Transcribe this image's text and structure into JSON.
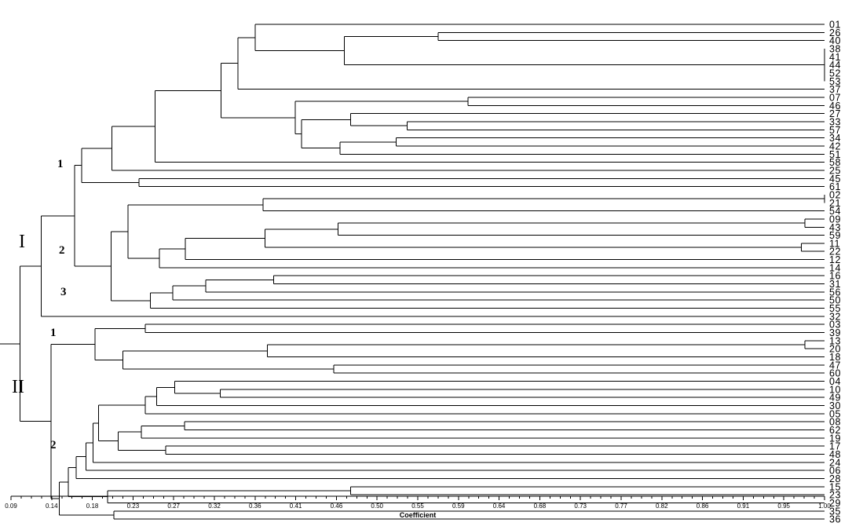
{
  "chart_data": {
    "type": "dendrogram",
    "xlabel": "Coefficient",
    "xlim": [
      0.09,
      1.0
    ],
    "x_tick_labels": [
      "0.09",
      "0.14",
      "0.18",
      "0.23",
      "0.27",
      "0.32",
      "0.36",
      "0.41",
      "0.46",
      "0.50",
      "0.55",
      "0.59",
      "0.64",
      "0.68",
      "0.73",
      "0.77",
      "0.82",
      "0.86",
      "0.91",
      "0.95",
      "1.00"
    ],
    "leaves": [
      "01",
      "26",
      "40",
      "38",
      "41",
      "44",
      "52",
      "53",
      "37",
      "07",
      "46",
      "27",
      "33",
      "57",
      "34",
      "42",
      "51",
      "58",
      "25",
      "45",
      "61",
      "02",
      "21",
      "54",
      "09",
      "43",
      "59",
      "11",
      "22",
      "12",
      "14",
      "16",
      "31",
      "56",
      "50",
      "55",
      "32",
      "03",
      "39",
      "13",
      "20",
      "18",
      "47",
      "60",
      "04",
      "10",
      "49",
      "30",
      "05",
      "08",
      "62",
      "19",
      "17",
      "48",
      "24",
      "06",
      "28",
      "15",
      "23",
      "29",
      "35",
      "36"
    ],
    "groups": [
      {
        "label": "I",
        "clusters": [
          "1",
          "2",
          "3"
        ]
      },
      {
        "label": "II",
        "clusters": [
          "1",
          "2"
        ]
      }
    ],
    "merges": [
      {
        "id": "m1",
        "children": [
          "L:38",
          "L:41",
          "L:44",
          "L:52",
          "L:53"
        ],
        "height": 1.0
      },
      {
        "id": "m2",
        "children": [
          "L:02",
          "L:21"
        ],
        "height": 1.0
      },
      {
        "id": "m3",
        "children": [
          "L:09",
          "L:43"
        ],
        "height": 0.978
      },
      {
        "id": "m4",
        "children": [
          "L:11",
          "L:22"
        ],
        "height": 0.974
      },
      {
        "id": "m5",
        "children": [
          "L:13",
          "L:20"
        ],
        "height": 0.978
      },
      {
        "id": "m6",
        "children": [
          "L:26",
          "L:40"
        ],
        "height": 0.568
      },
      {
        "id": "m7",
        "children": [
          "m6",
          "m1"
        ],
        "height": 0.463
      },
      {
        "id": "m8",
        "children": [
          "L:01",
          "m7"
        ],
        "height": 0.363
      },
      {
        "id": "m9",
        "children": [
          "m8",
          "L:37"
        ],
        "height": 0.344
      },
      {
        "id": "m10",
        "children": [
          "L:07",
          "L:46"
        ],
        "height": 0.601
      },
      {
        "id": "m11",
        "children": [
          "L:33",
          "L:57"
        ],
        "height": 0.533
      },
      {
        "id": "m12",
        "children": [
          "L:27",
          "m11"
        ],
        "height": 0.47
      },
      {
        "id": "m13",
        "children": [
          "L:34",
          "L:42"
        ],
        "height": 0.521
      },
      {
        "id": "m14",
        "children": [
          "m13",
          "L:51"
        ],
        "height": 0.458
      },
      {
        "id": "m15",
        "children": [
          "m12",
          "m14"
        ],
        "height": 0.415
      },
      {
        "id": "m16",
        "children": [
          "m10",
          "m15"
        ],
        "height": 0.408
      },
      {
        "id": "m17",
        "children": [
          "m9",
          "m16"
        ],
        "height": 0.325
      },
      {
        "id": "m18",
        "children": [
          "m17",
          "L:58"
        ],
        "height": 0.251
      },
      {
        "id": "m19",
        "children": [
          "m18",
          "L:25"
        ],
        "height": 0.203
      },
      {
        "id": "m20",
        "children": [
          "L:45",
          "L:61"
        ],
        "height": 0.233
      },
      {
        "id": "m21",
        "children": [
          "m19",
          "m20"
        ],
        "height": 0.169
      },
      {
        "id": "m22",
        "children": [
          "m2",
          "L:54"
        ],
        "height": 0.372
      },
      {
        "id": "m23",
        "children": [
          "m3",
          "L:59"
        ],
        "height": 0.456
      },
      {
        "id": "m24",
        "children": [
          "m23",
          "m4"
        ],
        "height": 0.374
      },
      {
        "id": "m25",
        "children": [
          "m24",
          "L:12"
        ],
        "height": 0.285
      },
      {
        "id": "m26",
        "children": [
          "m25",
          "L:14"
        ],
        "height": 0.256
      },
      {
        "id": "m27",
        "children": [
          "m22",
          "m26"
        ],
        "height": 0.221
      },
      {
        "id": "m28",
        "children": [
          "L:16",
          "L:31"
        ],
        "height": 0.384
      },
      {
        "id": "m29",
        "children": [
          "m28",
          "L:56"
        ],
        "height": 0.308
      },
      {
        "id": "m30",
        "children": [
          "m29",
          "L:50"
        ],
        "height": 0.271
      },
      {
        "id": "m31",
        "children": [
          "m30",
          "L:55"
        ],
        "height": 0.246
      },
      {
        "id": "m32",
        "children": [
          "m27",
          "m31"
        ],
        "height": 0.202
      },
      {
        "id": "m33",
        "children": [
          "m21",
          "m32"
        ],
        "height": 0.161
      },
      {
        "id": "m34",
        "children": [
          "m33",
          "L:32"
        ],
        "height": 0.124
      },
      {
        "id": "m35",
        "children": [
          "L:03",
          "L:39"
        ],
        "height": 0.24
      },
      {
        "id": "m36",
        "children": [
          "m5",
          "L:18"
        ],
        "height": 0.377
      },
      {
        "id": "m37",
        "children": [
          "L:47",
          "L:60"
        ],
        "height": 0.451
      },
      {
        "id": "m38",
        "children": [
          "m36",
          "m37"
        ],
        "height": 0.215
      },
      {
        "id": "m39",
        "children": [
          "m35",
          "m38"
        ],
        "height": 0.184
      },
      {
        "id": "m40",
        "children": [
          "L:10",
          "L:49"
        ],
        "height": 0.324
      },
      {
        "id": "m41",
        "children": [
          "L:04",
          "m40"
        ],
        "height": 0.273
      },
      {
        "id": "m42",
        "children": [
          "m41",
          "L:30"
        ],
        "height": 0.253
      },
      {
        "id": "m43",
        "children": [
          "m42",
          "L:05"
        ],
        "height": 0.24
      },
      {
        "id": "m44",
        "children": [
          "L:08",
          "L:62"
        ],
        "height": 0.284
      },
      {
        "id": "m45",
        "children": [
          "m44",
          "L:19"
        ],
        "height": 0.236
      },
      {
        "id": "m46",
        "children": [
          "L:17",
          "L:48"
        ],
        "height": 0.263
      },
      {
        "id": "m47",
        "children": [
          "m45",
          "m46"
        ],
        "height": 0.21
      },
      {
        "id": "m48",
        "children": [
          "m43",
          "m47"
        ],
        "height": 0.188
      },
      {
        "id": "m49",
        "children": [
          "m48",
          "L:24"
        ],
        "height": 0.182
      },
      {
        "id": "m50",
        "children": [
          "m49",
          "L:06"
        ],
        "height": 0.174
      },
      {
        "id": "m51",
        "children": [
          "m50",
          "L:28"
        ],
        "height": 0.163
      },
      {
        "id": "m52",
        "children": [
          "L:15",
          "L:23"
        ],
        "height": 0.47
      },
      {
        "id": "m53",
        "children": [
          "m52",
          "L:29"
        ],
        "height": 0.198
      },
      {
        "id": "m54",
        "children": [
          "m51",
          "m53"
        ],
        "height": 0.154
      },
      {
        "id": "m55",
        "children": [
          "L:35",
          "L:36"
        ],
        "height": 0.205
      },
      {
        "id": "m56",
        "children": [
          "m54",
          "m55"
        ],
        "height": 0.144
      },
      {
        "id": "m57",
        "children": [
          "m39",
          "m56"
        ],
        "height": 0.135
      },
      {
        "id": "m58",
        "children": [
          "m34",
          "m57"
        ],
        "height": 0.1
      }
    ]
  }
}
